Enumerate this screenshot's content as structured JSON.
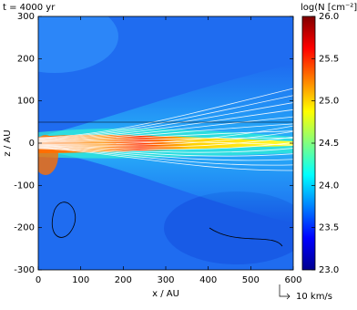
{
  "chart_data": {
    "type": "heatmap",
    "title": "t = 4000 yr",
    "xlabel": "x / AU",
    "ylabel": "z / AU",
    "xlim": [
      0,
      600
    ],
    "xticks": [
      0,
      100,
      200,
      300,
      400,
      500,
      600
    ],
    "ylim": [
      -300,
      300
    ],
    "yticks": [
      -300,
      -200,
      -100,
      0,
      100,
      200,
      300
    ],
    "colorbar": {
      "label": "log(N [cm⁻²])",
      "lim": [
        23,
        26
      ],
      "ticks": [
        {
          "value": 23,
          "label": "23.0"
        },
        {
          "value": 23.5,
          "label": "23.5"
        },
        {
          "value": 24,
          "label": "24.0"
        },
        {
          "value": 24.5,
          "label": "24.5"
        },
        {
          "value": 25,
          "label": "25.0"
        },
        {
          "value": 25.5,
          "label": "25.5"
        },
        {
          "value": 26,
          "label": "26.0"
        }
      ],
      "colors": [
        "#00008f",
        "#0000ff",
        "#0080ff",
        "#00ffff",
        "#80ff80",
        "#ffff00",
        "#ff8000",
        "#ff0000",
        "#800000"
      ]
    },
    "annotation": "10 km/s"
  }
}
